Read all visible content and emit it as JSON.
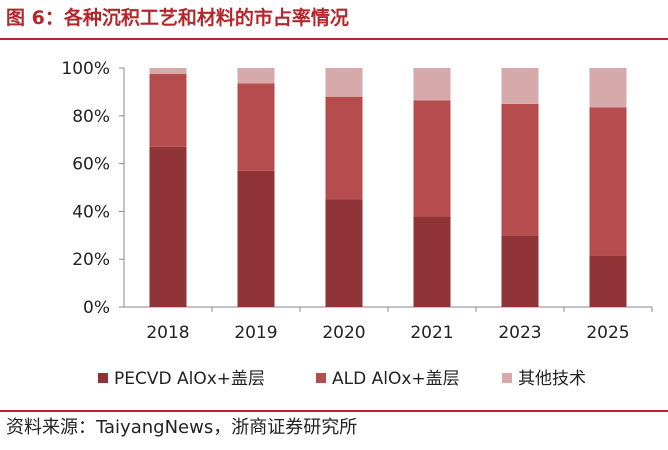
{
  "figure": {
    "title": "图 6：各种沉积工艺和材料的市占率情况",
    "source": "资料来源：TaiyangNews，浙商证券研究所"
  },
  "chart_data": {
    "type": "bar",
    "stacked": true,
    "categories": [
      "2018",
      "2019",
      "2020",
      "2021",
      "2023",
      "2025"
    ],
    "series": [
      {
        "name": "PECVD AlOx+盖层",
        "color": "#903336",
        "values": [
          67,
          57,
          45,
          38,
          30,
          21.5
        ]
      },
      {
        "name": "ALD AlOx+盖层",
        "color": "#b54c4e",
        "values": [
          30.5,
          36.5,
          43,
          48.5,
          55,
          62
        ]
      },
      {
        "name": "其他技术",
        "color": "#d6aaab",
        "values": [
          2.5,
          6.5,
          12,
          13.5,
          15,
          16.5
        ]
      }
    ],
    "ylim": [
      0,
      100
    ],
    "yticks": [
      0,
      20,
      40,
      60,
      80,
      100
    ],
    "ytick_labels": [
      "0%",
      "20%",
      "40%",
      "60%",
      "80%",
      "100%"
    ],
    "xlabel": "",
    "ylabel": "",
    "grid": false,
    "legend_position": "bottom"
  }
}
